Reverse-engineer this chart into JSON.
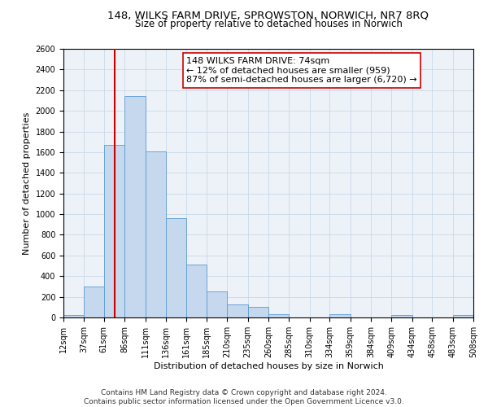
{
  "title": "148, WILKS FARM DRIVE, SPROWSTON, NORWICH, NR7 8RQ",
  "subtitle": "Size of property relative to detached houses in Norwich",
  "xlabel": "Distribution of detached houses by size in Norwich",
  "ylabel": "Number of detached properties",
  "bin_edges": [
    12,
    37,
    61,
    86,
    111,
    136,
    161,
    185,
    210,
    235,
    260,
    285,
    310,
    334,
    359,
    384,
    409,
    434,
    458,
    483,
    508
  ],
  "bar_heights": [
    20,
    300,
    1670,
    2140,
    1610,
    960,
    510,
    255,
    125,
    100,
    35,
    0,
    0,
    35,
    0,
    0,
    20,
    0,
    0,
    20
  ],
  "bar_color": "#c5d8ed",
  "bar_edge_color": "#5b9bd5",
  "property_size": 74,
  "vline_color": "#cc0000",
  "annotation_line1": "148 WILKS FARM DRIVE: 74sqm",
  "annotation_line2": "← 12% of detached houses are smaller (959)",
  "annotation_line3": "87% of semi-detached houses are larger (6,720) →",
  "annotation_box_color": "#ffffff",
  "annotation_box_edge": "#cc0000",
  "ylim": [
    0,
    2600
  ],
  "yticks": [
    0,
    200,
    400,
    600,
    800,
    1000,
    1200,
    1400,
    1600,
    1800,
    2000,
    2200,
    2400,
    2600
  ],
  "tick_labels": [
    "12sqm",
    "37sqm",
    "61sqm",
    "86sqm",
    "111sqm",
    "136sqm",
    "161sqm",
    "185sqm",
    "210sqm",
    "235sqm",
    "260sqm",
    "285sqm",
    "310sqm",
    "334sqm",
    "359sqm",
    "384sqm",
    "409sqm",
    "434sqm",
    "458sqm",
    "483sqm",
    "508sqm"
  ],
  "footer_line1": "Contains HM Land Registry data © Crown copyright and database right 2024.",
  "footer_line2": "Contains public sector information licensed under the Open Government Licence v3.0.",
  "title_fontsize": 9.5,
  "subtitle_fontsize": 8.5,
  "axis_label_fontsize": 8,
  "tick_fontsize": 7,
  "annotation_fontsize": 8,
  "footer_fontsize": 6.5
}
